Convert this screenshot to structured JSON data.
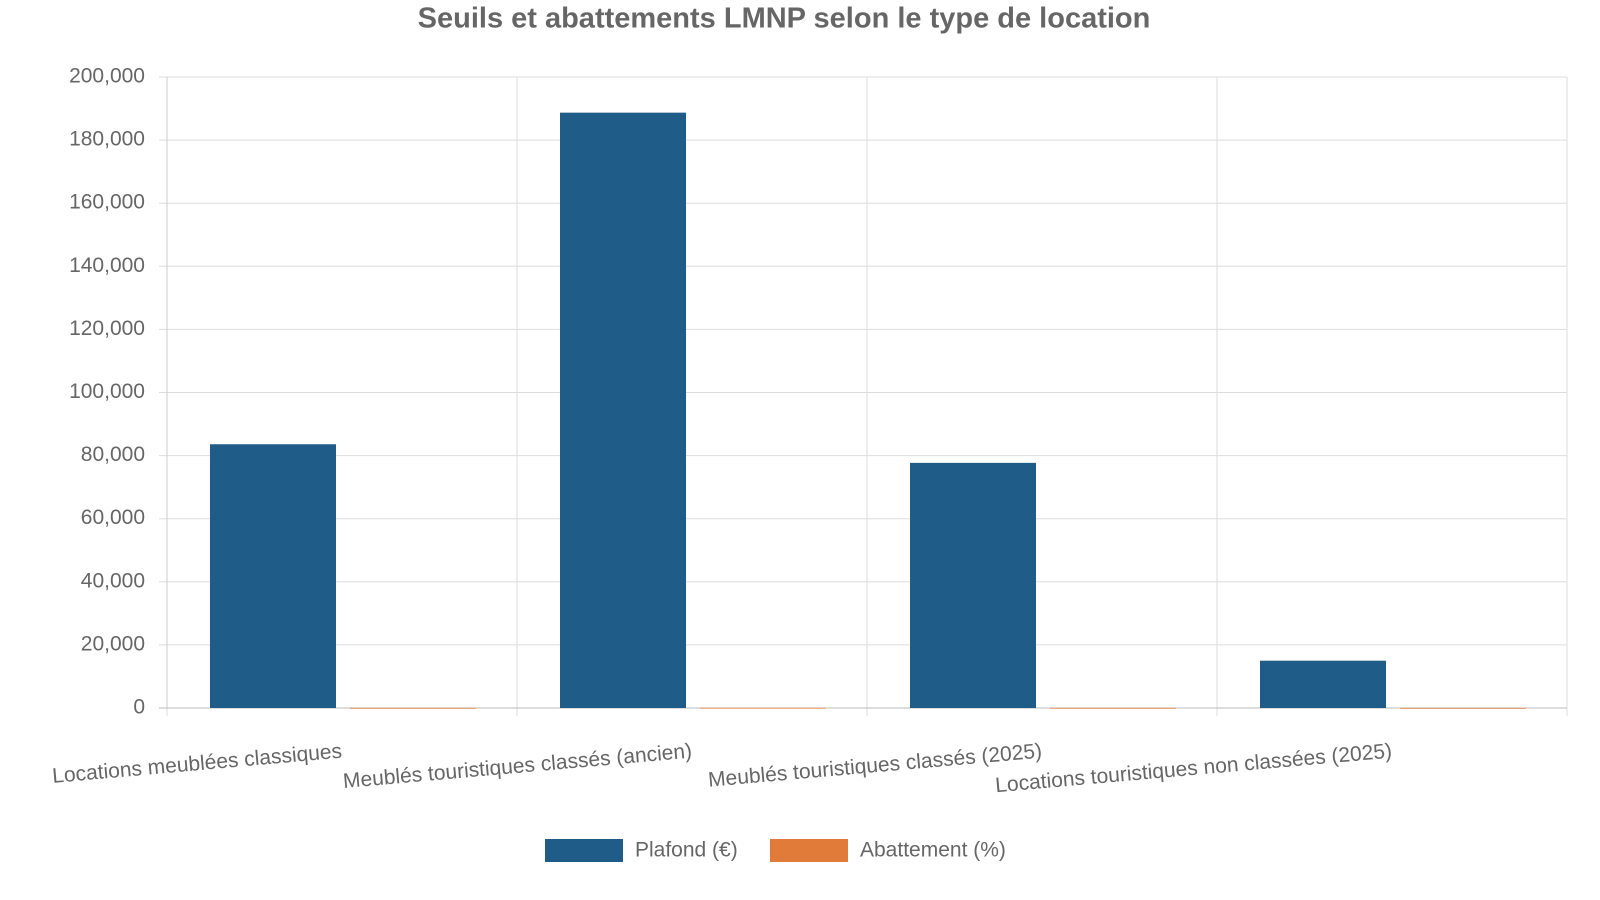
{
  "chart_data": {
    "type": "bar",
    "title": "Seuils et abattements LMNP selon le type de location",
    "categories": [
      "Locations meublées classiques",
      "Meublés touristiques classés (ancien)",
      "Meublés touristiques classés (2025)",
      "Locations touristiques non classées (2025)"
    ],
    "series": [
      {
        "name": "Plafond (€)",
        "color": "#1f5c87",
        "values": [
          83600,
          188700,
          77700,
          15000
        ]
      },
      {
        "name": "Abattement (%)",
        "color": "#e07b39",
        "values": [
          50,
          71,
          50,
          30
        ]
      }
    ],
    "ylim": [
      0,
      200000
    ],
    "yticks": [
      0,
      {
        "value": 20000,
        "label": "20,000"
      },
      {
        "value": 40000,
        "label": "40,000"
      },
      {
        "value": 60000,
        "label": "60,000"
      },
      {
        "value": 80000,
        "label": "80,000"
      },
      {
        "value": 100000,
        "label": "100,000"
      },
      {
        "value": 120000,
        "label": "120,000"
      },
      {
        "value": 140000,
        "label": "140,000"
      },
      {
        "value": 160000,
        "label": "160,000"
      },
      {
        "value": 180000,
        "label": "180,000"
      },
      {
        "value": 200000,
        "label": "200,000"
      }
    ],
    "grid": true,
    "legend": "bottom"
  }
}
